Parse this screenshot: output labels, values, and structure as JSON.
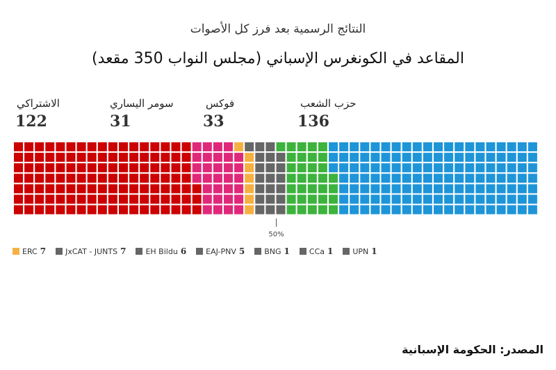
{
  "chart_data": {
    "type": "waffle",
    "subtitle": "النتائج الرسمية بعد فرز كل الأصوات",
    "title": "المقاعد في الكونغرس الإسباني (مجلس النواب 350 مقعد)",
    "total_seats": 350,
    "majority_label": "50%",
    "rows": 7,
    "series": [
      {
        "name": "الاشتراكي",
        "seats": 122,
        "color": "#cc0000",
        "label": true
      },
      {
        "name": "سومر اليساري",
        "seats": 31,
        "color": "#e0287a",
        "label": true
      },
      {
        "name": "ERC",
        "seats": 7,
        "color": "#f6b042",
        "label": false
      },
      {
        "name": "JxCAT - JUNTS",
        "seats": 7,
        "color": "#666666",
        "label": false
      },
      {
        "name": "EH Bildu",
        "seats": 6,
        "color": "#666666",
        "label": false
      },
      {
        "name": "EAJ-PNV",
        "seats": 5,
        "color": "#666666",
        "label": false
      },
      {
        "name": "BNG",
        "seats": 1,
        "color": "#666666",
        "label": false
      },
      {
        "name": "CCa",
        "seats": 1,
        "color": "#666666",
        "label": false
      },
      {
        "name": "UPN",
        "seats": 1,
        "color": "#666666",
        "label": false
      },
      {
        "name": "فوكس",
        "seats": 33,
        "color": "#3db33d",
        "label": true
      },
      {
        "name": "حزب الشعب",
        "seats": 136,
        "color": "#1e95d8",
        "label": true
      }
    ],
    "legend": [
      {
        "name": "ERC",
        "value": "7",
        "color": "#f6b042"
      },
      {
        "name": "JxCAT - JUNTS",
        "value": "7",
        "color": "#666666"
      },
      {
        "name": "EH Bildu",
        "value": "6",
        "color": "#666666"
      },
      {
        "name": "EAJ-PNV",
        "value": "5",
        "color": "#666666"
      },
      {
        "name": "BNG",
        "value": "1",
        "color": "#666666"
      },
      {
        "name": "CCa",
        "value": "1",
        "color": "#666666"
      },
      {
        "name": "UPN",
        "value": "1",
        "color": "#666666"
      }
    ]
  },
  "labels": {
    "psoe": {
      "name": "الاشتراكي",
      "count": "122"
    },
    "sumar": {
      "name": "سومر اليساري",
      "count": "31"
    },
    "vox": {
      "name": "فوكس",
      "count": "33"
    },
    "pp": {
      "name": "حزب الشعب",
      "count": "136"
    }
  },
  "source": "المصدر: الحكومة الإسبانية"
}
